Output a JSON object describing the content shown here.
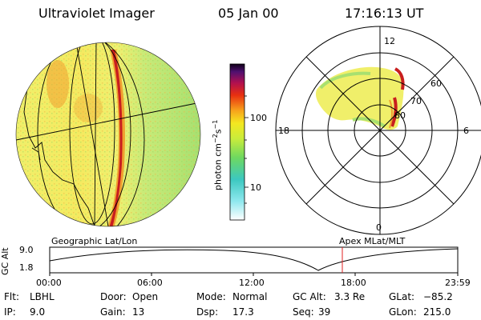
{
  "header": {
    "instrument": "Ultraviolet Imager",
    "date": "05 Jan 00",
    "time": "17:16:13 UT"
  },
  "colorbar": {
    "unit": "photon cm",
    "unit_exp1": "−2",
    "unit_mid": "s",
    "unit_exp2": "−1",
    "ticks": [
      "100",
      "10"
    ]
  },
  "polar_plot": {
    "lat_labels": [
      "80",
      "70",
      "60"
    ],
    "mlt_labels": [
      "12",
      "18",
      "6",
      "0"
    ]
  },
  "timeline": {
    "y_axis_label": "GC Alt",
    "y_ticks": [
      "9.0",
      "1.8"
    ],
    "left_caption": "Geographic Lat/Lon",
    "right_caption": "Apex MLat/MLT",
    "x_ticks": [
      "00:00",
      "06:00",
      "12:00",
      "18:00",
      "23:59"
    ],
    "current_marker_time": "17:16"
  },
  "info": {
    "flt_label": "Flt:",
    "flt_value": "LBHL",
    "ip_label": "IP:",
    "ip_value": "9.0",
    "door_label": "Door:",
    "door_value": "Open",
    "gain_label": "Gain:",
    "gain_value": "13",
    "mode_label": "Mode:",
    "mode_value": "Normal",
    "dsp_label": "Dsp:",
    "dsp_value": "17.3",
    "gcalt_label": "GC Alt:",
    "gcalt_value": "3.3 Re",
    "seq_label": "Seq:",
    "seq_value": "39",
    "glat_label": "GLat:",
    "glat_value": "−85.2",
    "glon_label": "GLon:",
    "glon_value": "215.0"
  },
  "colors": {
    "aurora_red": "#c81e1e",
    "aurora_orange": "#f09a2a",
    "aurora_yellow": "#f0ef6a",
    "aurora_green": "#a8e070",
    "marker": "#e02020"
  }
}
